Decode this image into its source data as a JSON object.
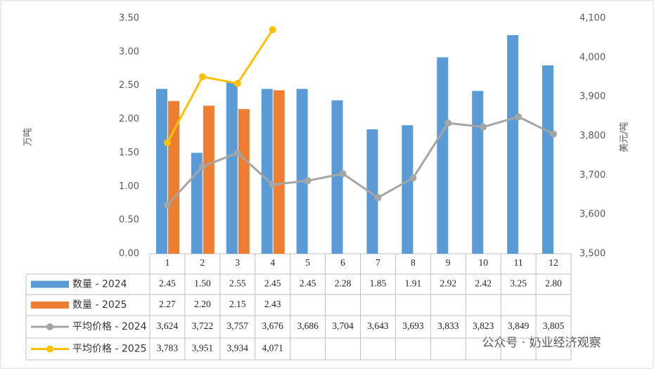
{
  "chart_data": {
    "type": "bar-line",
    "y_label": "万吨",
    "y2_label": "美元/吨",
    "watermark": "公众号 · 奶业经济观察",
    "categories": [
      "1",
      "2",
      "3",
      "4",
      "5",
      "6",
      "7",
      "8",
      "9",
      "10",
      "11",
      "12"
    ],
    "ylim": [
      0,
      3.5
    ],
    "yticks": [
      {
        "value": 0,
        "label": "0.00"
      },
      {
        "value": 0.5,
        "label": "0.50"
      },
      {
        "value": 1,
        "label": "1.00"
      },
      {
        "value": 1.5,
        "label": "1.50"
      },
      {
        "value": 2,
        "label": "2.00"
      },
      {
        "value": 2.5,
        "label": "2.50"
      },
      {
        "value": 3,
        "label": "3.00"
      },
      {
        "value": 3.5,
        "label": "3.50"
      }
    ],
    "y2lim": [
      3500,
      4100
    ],
    "y2ticks": [
      {
        "value": 3500,
        "label": "3,500"
      },
      {
        "value": 3600,
        "label": "3,600"
      },
      {
        "value": 3700,
        "label": "3,700"
      },
      {
        "value": 3800,
        "label": "3,800"
      },
      {
        "value": 3900,
        "label": "3,900"
      },
      {
        "value": 4000,
        "label": "4,000"
      },
      {
        "value": 4100,
        "label": "4,100"
      }
    ],
    "series": [
      {
        "name": "数量 - 2024",
        "kind": "bar",
        "color": "#5b9bd5",
        "values": [
          2.45,
          1.5,
          2.55,
          2.45,
          2.45,
          2.28,
          1.85,
          1.91,
          2.92,
          2.42,
          3.25,
          2.8
        ],
        "value_labels": [
          "2.45",
          "1.50",
          "2.55",
          "2.45",
          "2.45",
          "2.28",
          "1.85",
          "1.91",
          "2.92",
          "2.42",
          "3.25",
          "2.80"
        ]
      },
      {
        "name": "数量 - 2025",
        "kind": "bar",
        "color": "#ed7d31",
        "values": [
          2.27,
          2.2,
          2.15,
          2.43,
          null,
          null,
          null,
          null,
          null,
          null,
          null,
          null
        ],
        "value_labels": [
          "2.27",
          "2.20",
          "2.15",
          "2.43",
          null,
          null,
          null,
          null,
          null,
          null,
          null,
          null
        ]
      },
      {
        "name": "平均价格 - 2024",
        "kind": "line",
        "axis": "y2",
        "color": "#a5a5a5",
        "values": [
          3624,
          3722,
          3757,
          3676,
          3686,
          3704,
          3643,
          3693,
          3833,
          3823,
          3849,
          3805
        ],
        "value_labels": [
          "3,624",
          "3,722",
          "3,757",
          "3,676",
          "3,686",
          "3,704",
          "3,643",
          "3,693",
          "3,833",
          "3,823",
          "3,849",
          "3,805"
        ]
      },
      {
        "name": "平均价格 - 2025",
        "kind": "line",
        "axis": "y2",
        "color": "#ffc000",
        "values": [
          3783,
          3951,
          3934,
          4071,
          null,
          null,
          null,
          null,
          null,
          null,
          null,
          null
        ],
        "value_labels": [
          "3,783",
          "3,951",
          "3,934",
          "4,071",
          null,
          null,
          null,
          null,
          null,
          null,
          null,
          null
        ]
      }
    ]
  }
}
